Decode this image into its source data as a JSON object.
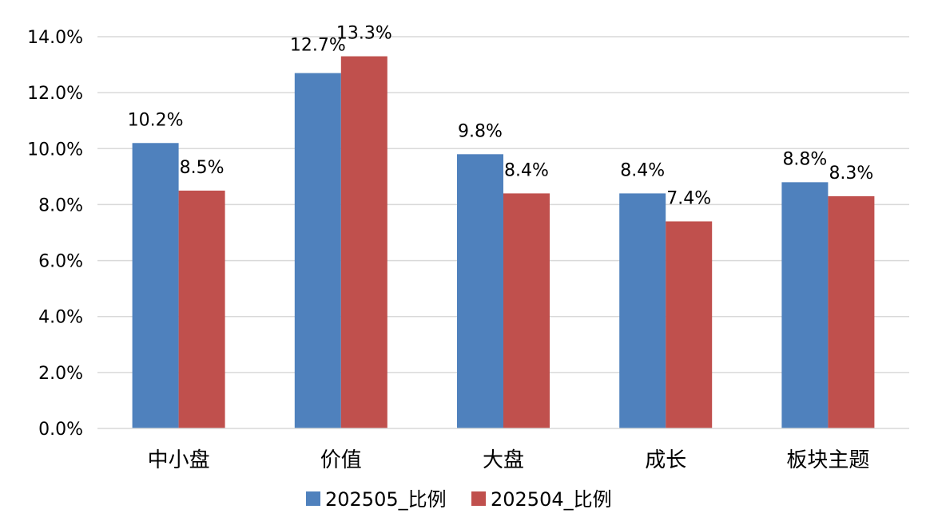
{
  "chart_data": {
    "type": "bar",
    "categories": [
      "中小盘",
      "价值",
      "大盘",
      "成长",
      "板块主题"
    ],
    "series": [
      {
        "name": "202505_比例",
        "values": [
          10.2,
          12.7,
          9.8,
          8.4,
          8.8
        ],
        "labels": [
          "10.2%",
          "12.7%",
          "9.8%",
          "8.4%",
          "8.8%"
        ],
        "color": "#4F81BD"
      },
      {
        "name": "202504_比例",
        "values": [
          8.5,
          13.3,
          8.4,
          7.4,
          8.3
        ],
        "labels": [
          "8.5%",
          "13.3%",
          "8.4%",
          "7.4%",
          "8.3%"
        ],
        "color": "#C0504D"
      }
    ],
    "ylim": [
      0,
      14
    ],
    "yticks": [
      "0.0%",
      "2.0%",
      "4.0%",
      "6.0%",
      "8.0%",
      "10.0%",
      "12.0%",
      "14.0%"
    ],
    "grid": true,
    "legend": "bottom"
  }
}
